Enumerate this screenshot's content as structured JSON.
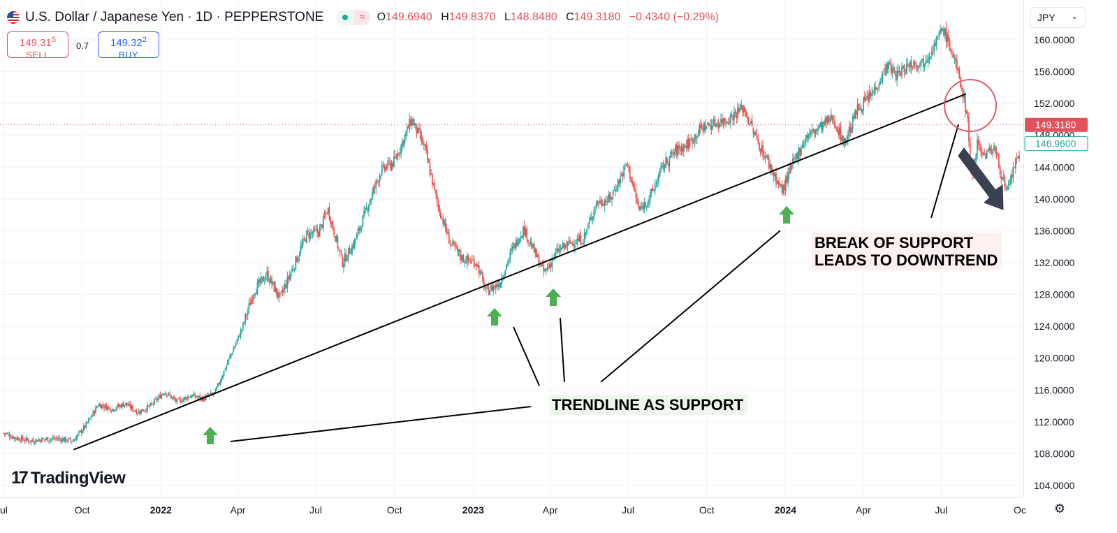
{
  "header": {
    "symbol": "U.S. Dollar / Japanese Yen · 1D · PEPPERSTONE",
    "ohlc": {
      "o_label": "O",
      "o": "149.6940",
      "h_label": "H",
      "h": "149.8370",
      "l_label": "L",
      "l": "148.8480",
      "c_label": "C",
      "c": "149.3180",
      "change": "−0.4340 (−0.29%)"
    }
  },
  "trade": {
    "sell_price_main": "149.31",
    "sell_price_sup": "5",
    "sell_label": "SELL",
    "spread": "0.7",
    "buy_price_main": "149.32",
    "buy_price_sup": "2",
    "buy_label": "BUY"
  },
  "currency_selector": "JPY",
  "brand": "TradingView",
  "colors": {
    "up": "#26a69a",
    "down": "#ef5350",
    "price_line": "#e2515c",
    "arrow_green": "#4caf50",
    "annotation_circle": "#e05b6b"
  },
  "icons": {
    "flag": "us-jp-flag-icon",
    "settings": "gear-icon",
    "dropdown": "chevron-down-icon"
  },
  "chart_data": {
    "type": "candlestick",
    "y_axis_labels": [
      "160.0000",
      "156.0000",
      "152.0000",
      "148.0000",
      "144.0000",
      "140.0000",
      "136.0000",
      "132.0000",
      "128.0000",
      "124.0000",
      "120.0000",
      "116.0000",
      "112.0000",
      "108.0000",
      "104.0000"
    ],
    "ylim": [
      102.5,
      163
    ],
    "x_axis_labels": [
      "ul",
      "Oct",
      "2022",
      "Apr",
      "Jul",
      "Oct",
      "2023",
      "Apr",
      "Jul",
      "Oct",
      "2024",
      "Apr",
      "Jul",
      "Oc"
    ],
    "x_axis_bold": [
      "2022",
      "2023",
      "2024"
    ],
    "current_price_label": "149.3180",
    "secondary_price_label": "146.9600",
    "series_close": [
      [
        "2021-07-01",
        110.6
      ],
      [
        "2021-07-15",
        110.0
      ],
      [
        "2021-08-01",
        109.6
      ],
      [
        "2021-08-15",
        109.8
      ],
      [
        "2021-09-01",
        109.9
      ],
      [
        "2021-09-20",
        109.6
      ],
      [
        "2021-10-05",
        111.5
      ],
      [
        "2021-10-20",
        114.2
      ],
      [
        "2021-11-05",
        113.6
      ],
      [
        "2021-11-20",
        114.3
      ],
      [
        "2021-12-05",
        113.2
      ],
      [
        "2021-12-20",
        114.0
      ],
      [
        "2022-01-05",
        115.8
      ],
      [
        "2022-01-20",
        114.5
      ],
      [
        "2022-02-05",
        115.3
      ],
      [
        "2022-02-20",
        114.9
      ],
      [
        "2022-03-05",
        115.6
      ],
      [
        "2022-03-20",
        119.5
      ],
      [
        "2022-04-05",
        123.5
      ],
      [
        "2022-04-20",
        128.5
      ],
      [
        "2022-05-05",
        130.5
      ],
      [
        "2022-05-20",
        127.5
      ],
      [
        "2022-06-05",
        131.5
      ],
      [
        "2022-06-20",
        135.5
      ],
      [
        "2022-07-05",
        135.9
      ],
      [
        "2022-07-15",
        138.8
      ],
      [
        "2022-08-01",
        132.0
      ],
      [
        "2022-08-15",
        134.5
      ],
      [
        "2022-09-01",
        139.5
      ],
      [
        "2022-09-15",
        143.5
      ],
      [
        "2022-10-01",
        144.7
      ],
      [
        "2022-10-21",
        150.0
      ],
      [
        "2022-11-05",
        146.5
      ],
      [
        "2022-11-20",
        139.5
      ],
      [
        "2022-12-05",
        134.5
      ],
      [
        "2022-12-20",
        132.5
      ],
      [
        "2023-01-05",
        132.0
      ],
      [
        "2023-01-16",
        128.3
      ],
      [
        "2023-02-01",
        129.5
      ],
      [
        "2023-02-15",
        133.5
      ],
      [
        "2023-03-01",
        136.3
      ],
      [
        "2023-03-15",
        133.0
      ],
      [
        "2023-03-25",
        130.7
      ],
      [
        "2023-04-10",
        133.5
      ],
      [
        "2023-04-25",
        134.5
      ],
      [
        "2023-05-10",
        135.0
      ],
      [
        "2023-05-25",
        139.5
      ],
      [
        "2023-06-10",
        140.0
      ],
      [
        "2023-06-30",
        144.5
      ],
      [
        "2023-07-14",
        138.5
      ],
      [
        "2023-07-28",
        140.5
      ],
      [
        "2023-08-10",
        144.0
      ],
      [
        "2023-08-25",
        146.0
      ],
      [
        "2023-09-10",
        147.0
      ],
      [
        "2023-09-25",
        149.0
      ],
      [
        "2023-10-10",
        149.5
      ],
      [
        "2023-10-25",
        150.0
      ],
      [
        "2023-11-13",
        151.5
      ],
      [
        "2023-11-28",
        147.5
      ],
      [
        "2023-12-10",
        145.0
      ],
      [
        "2023-12-28",
        141.0
      ],
      [
        "2024-01-10",
        144.5
      ],
      [
        "2024-01-25",
        147.8
      ],
      [
        "2024-02-10",
        149.0
      ],
      [
        "2024-02-25",
        150.2
      ],
      [
        "2024-03-10",
        147.0
      ],
      [
        "2024-03-25",
        151.3
      ],
      [
        "2024-04-10",
        153.0
      ],
      [
        "2024-04-29",
        156.8
      ],
      [
        "2024-05-10",
        155.5
      ],
      [
        "2024-05-25",
        157.0
      ],
      [
        "2024-06-10",
        157.2
      ],
      [
        "2024-06-25",
        159.7
      ],
      [
        "2024-07-03",
        161.5
      ],
      [
        "2024-07-15",
        158.0
      ],
      [
        "2024-07-25",
        154.0
      ],
      [
        "2024-08-01",
        150.0
      ],
      [
        "2024-08-05",
        142.5
      ],
      [
        "2024-08-12",
        147.2
      ],
      [
        "2024-08-20",
        145.5
      ],
      [
        "2024-09-01",
        146.5
      ],
      [
        "2024-09-16",
        140.5
      ],
      [
        "2024-09-25",
        144.5
      ],
      [
        "2024-10-01",
        145.0
      ]
    ],
    "trendline": {
      "from": [
        "2021-09-21",
        108.5
      ],
      "to": [
        "2024-07-30",
        153.2
      ]
    },
    "price_line": 149.318
  },
  "annotations": {
    "break": [
      "BREAK OF SUPPORT",
      "LEADS TO DOWNTREND"
    ],
    "trendline": "TRENDLINE AS SUPPORT"
  }
}
